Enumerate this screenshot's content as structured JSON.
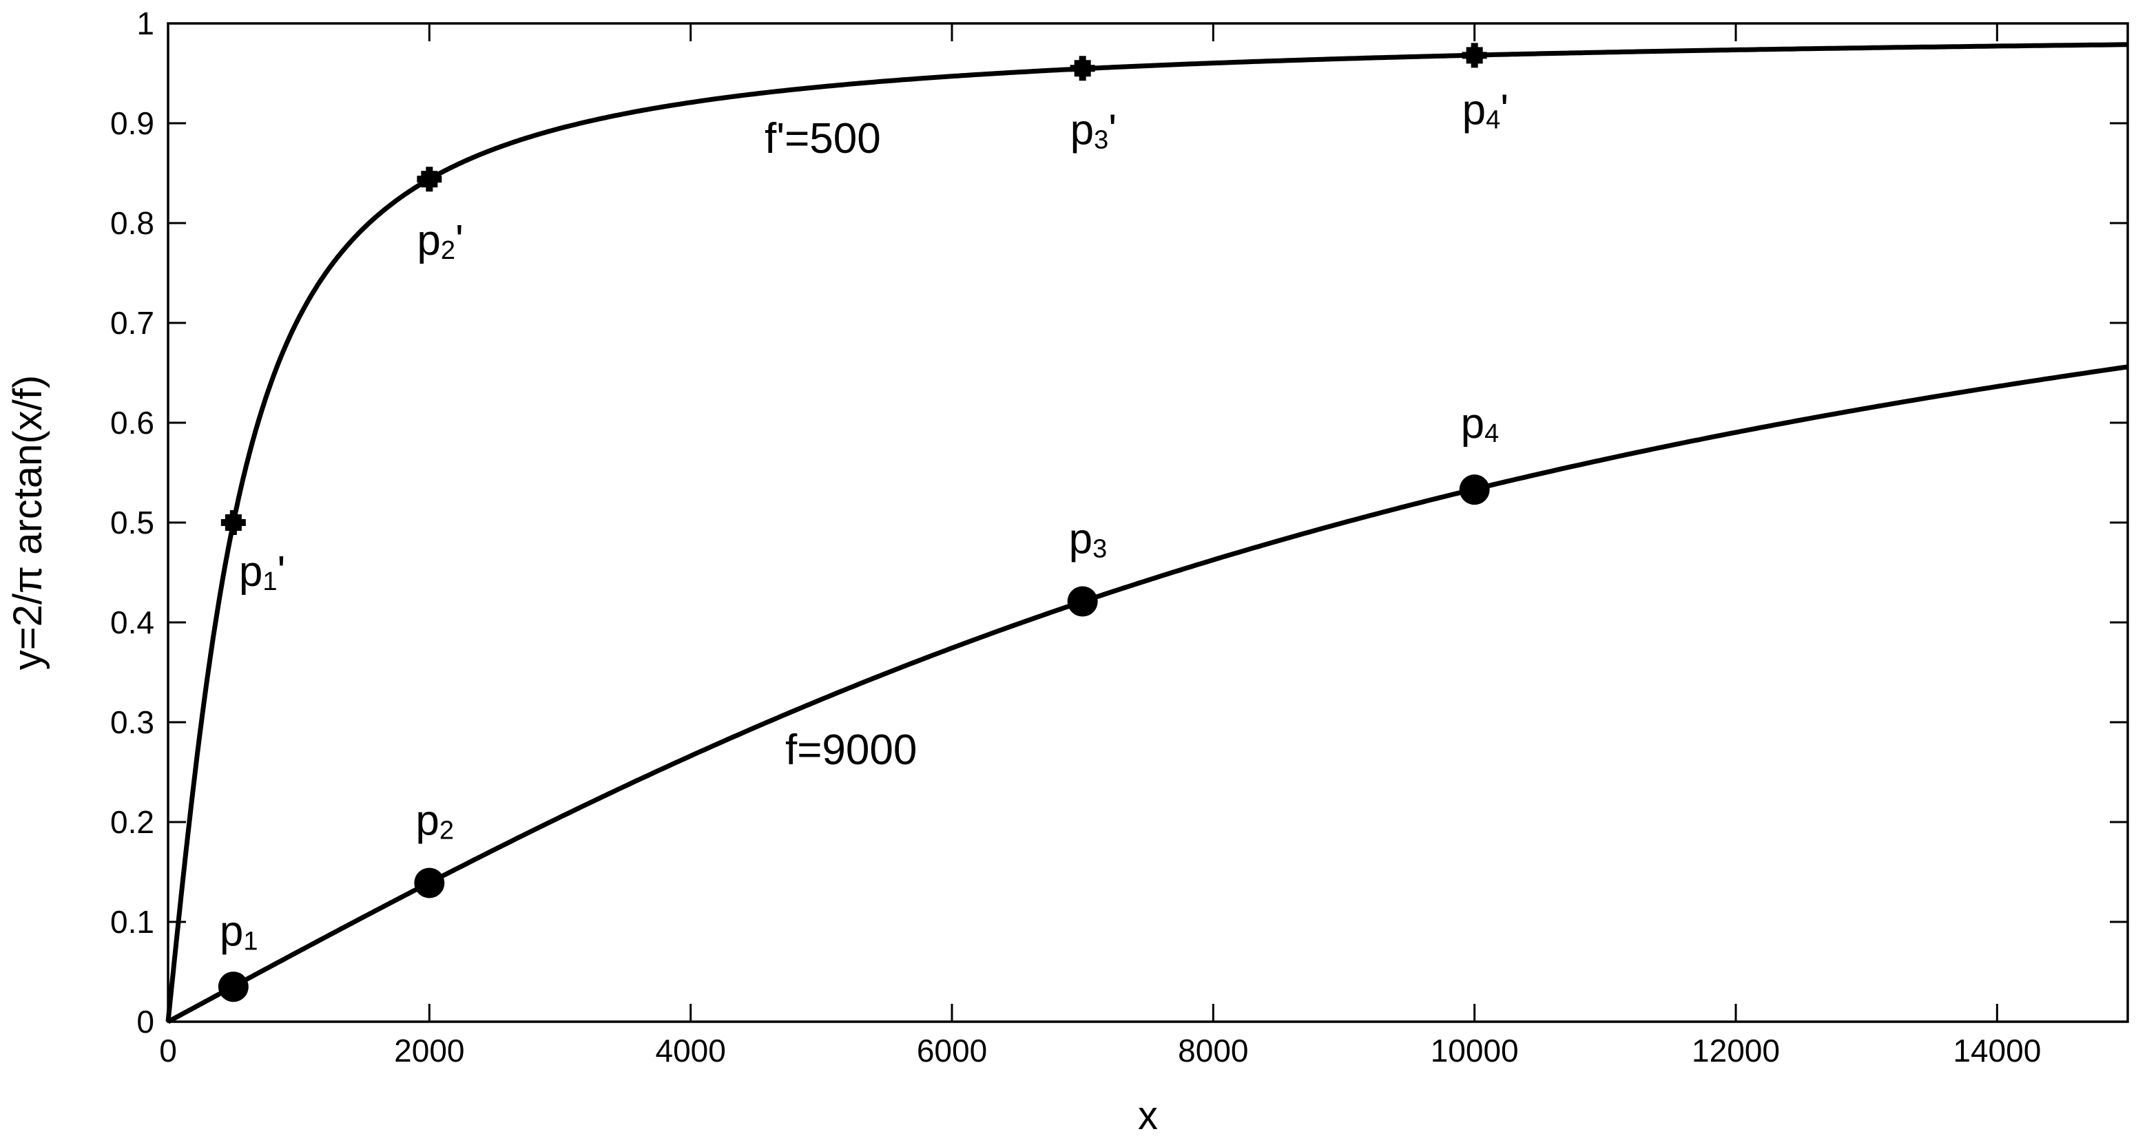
{
  "chart_data": {
    "type": "line",
    "title": "",
    "xlabel": "x",
    "ylabel": "y=2/π arctan(x/f)",
    "xlim": [
      0,
      15000
    ],
    "ylim": [
      0,
      1
    ],
    "xticks": [
      0,
      2000,
      4000,
      6000,
      8000,
      10000,
      12000,
      14000
    ],
    "xtick_labels": [
      "0",
      "2000",
      "4000",
      "6000",
      "8000",
      "10000",
      "12000",
      "14000"
    ],
    "yticks": [
      0,
      0.1,
      0.2,
      0.3,
      0.4,
      0.5,
      0.6,
      0.7,
      0.8,
      0.9,
      1
    ],
    "ytick_labels": [
      "0",
      "0.1",
      "0.2",
      "0.3",
      "0.4",
      "0.5",
      "0.6",
      "0.7",
      "0.8",
      "0.9",
      "1"
    ],
    "grid": false,
    "series": [
      {
        "label": "f'=500",
        "f": 500,
        "marker": "square-cross",
        "points": [
          {
            "label": "p1'",
            "x": 500,
            "y": 0.5
          },
          {
            "label": "p2'",
            "x": 2000,
            "y": 0.844
          },
          {
            "label": "p3'",
            "x": 7000,
            "y": 0.955
          },
          {
            "label": "p4'",
            "x": 10000,
            "y": 0.968
          }
        ]
      },
      {
        "label": "f=9000",
        "f": 9000,
        "marker": "circle",
        "points": [
          {
            "label": "p1",
            "x": 500,
            "y": 0.035
          },
          {
            "label": "p2",
            "x": 2000,
            "y": 0.139
          },
          {
            "label": "p3",
            "x": 7000,
            "y": 0.421
          },
          {
            "label": "p4",
            "x": 10000,
            "y": 0.533
          }
        ]
      }
    ]
  }
}
